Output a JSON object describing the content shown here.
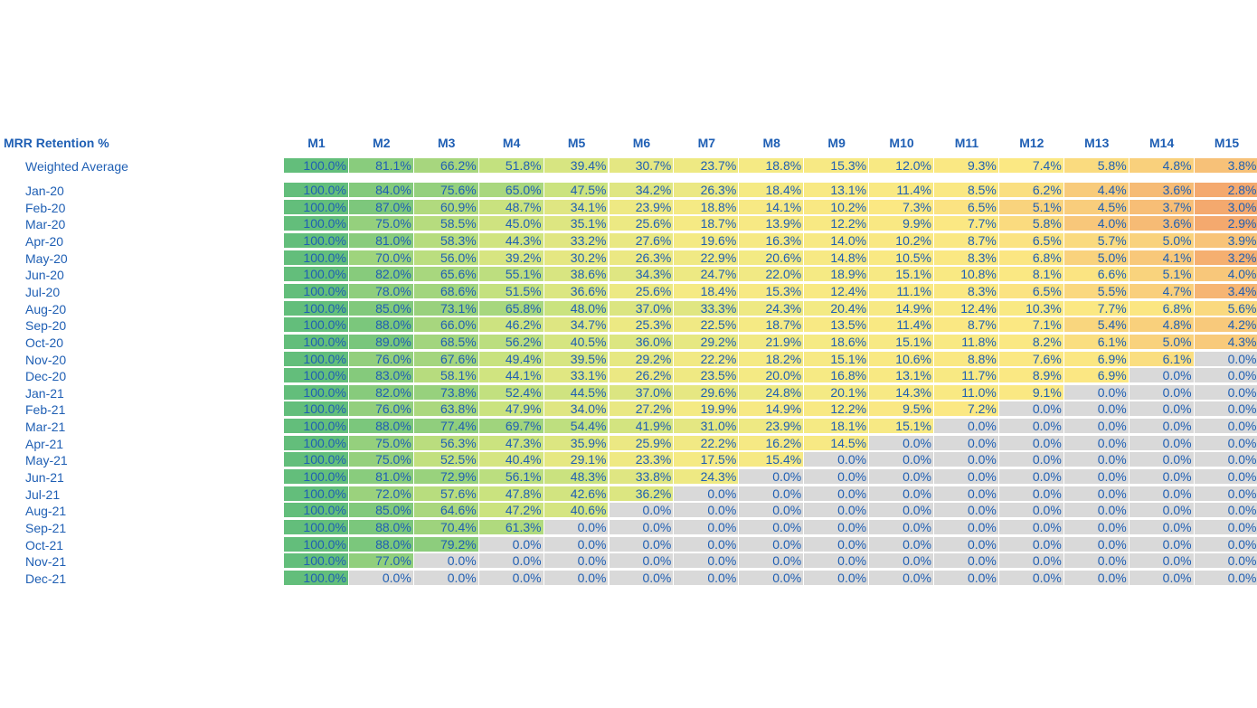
{
  "chart_data": {
    "type": "heatmap",
    "title": "MRR Retention %",
    "columns": [
      "M1",
      "M2",
      "M3",
      "M4",
      "M5",
      "M6",
      "M7",
      "M8",
      "M9",
      "M10",
      "M11",
      "M12",
      "M13",
      "M14",
      "M15"
    ],
    "weighted_average": {
      "label": "Weighted Average",
      "values": [
        "100.0%",
        "81.1%",
        "66.2%",
        "51.8%",
        "39.4%",
        "30.7%",
        "23.7%",
        "18.8%",
        "15.3%",
        "12.0%",
        "9.3%",
        "7.4%",
        "5.8%",
        "4.8%",
        "3.8%"
      ]
    },
    "rows": [
      {
        "label": "Jan-20",
        "values": [
          "100.0%",
          "84.0%",
          "75.6%",
          "65.0%",
          "47.5%",
          "34.2%",
          "26.3%",
          "18.4%",
          "13.1%",
          "11.4%",
          "8.5%",
          "6.2%",
          "4.4%",
          "3.6%",
          "2.8%"
        ]
      },
      {
        "label": "Feb-20",
        "values": [
          "100.0%",
          "87.0%",
          "60.9%",
          "48.7%",
          "34.1%",
          "23.9%",
          "18.8%",
          "14.1%",
          "10.2%",
          "7.3%",
          "6.5%",
          "5.1%",
          "4.5%",
          "3.7%",
          "3.0%"
        ]
      },
      {
        "label": "Mar-20",
        "values": [
          "100.0%",
          "75.0%",
          "58.5%",
          "45.0%",
          "35.1%",
          "25.6%",
          "18.7%",
          "13.9%",
          "12.2%",
          "9.9%",
          "7.7%",
          "5.8%",
          "4.0%",
          "3.6%",
          "2.9%"
        ]
      },
      {
        "label": "Apr-20",
        "values": [
          "100.0%",
          "81.0%",
          "58.3%",
          "44.3%",
          "33.2%",
          "27.6%",
          "19.6%",
          "16.3%",
          "14.0%",
          "10.2%",
          "8.7%",
          "6.5%",
          "5.7%",
          "5.0%",
          "3.9%"
        ]
      },
      {
        "label": "May-20",
        "values": [
          "100.0%",
          "70.0%",
          "56.0%",
          "39.2%",
          "30.2%",
          "26.3%",
          "22.9%",
          "20.6%",
          "14.8%",
          "10.5%",
          "8.3%",
          "6.8%",
          "5.0%",
          "4.1%",
          "3.2%"
        ]
      },
      {
        "label": "Jun-20",
        "values": [
          "100.0%",
          "82.0%",
          "65.6%",
          "55.1%",
          "38.6%",
          "34.3%",
          "24.7%",
          "22.0%",
          "18.9%",
          "15.1%",
          "10.8%",
          "8.1%",
          "6.6%",
          "5.1%",
          "4.0%"
        ]
      },
      {
        "label": "Jul-20",
        "values": [
          "100.0%",
          "78.0%",
          "68.6%",
          "51.5%",
          "36.6%",
          "25.6%",
          "18.4%",
          "15.3%",
          "12.4%",
          "11.1%",
          "8.3%",
          "6.5%",
          "5.5%",
          "4.7%",
          "3.4%"
        ]
      },
      {
        "label": "Aug-20",
        "values": [
          "100.0%",
          "85.0%",
          "73.1%",
          "65.8%",
          "48.0%",
          "37.0%",
          "33.3%",
          "24.3%",
          "20.4%",
          "14.9%",
          "12.4%",
          "10.3%",
          "7.7%",
          "6.8%",
          "5.6%"
        ]
      },
      {
        "label": "Sep-20",
        "values": [
          "100.0%",
          "88.0%",
          "66.0%",
          "46.2%",
          "34.7%",
          "25.3%",
          "22.5%",
          "18.7%",
          "13.5%",
          "11.4%",
          "8.7%",
          "7.1%",
          "5.4%",
          "4.8%",
          "4.2%"
        ]
      },
      {
        "label": "Oct-20",
        "values": [
          "100.0%",
          "89.0%",
          "68.5%",
          "56.2%",
          "40.5%",
          "36.0%",
          "29.2%",
          "21.9%",
          "18.6%",
          "15.1%",
          "11.8%",
          "8.2%",
          "6.1%",
          "5.0%",
          "4.3%"
        ]
      },
      {
        "label": "Nov-20",
        "values": [
          "100.0%",
          "76.0%",
          "67.6%",
          "49.4%",
          "39.5%",
          "29.2%",
          "22.2%",
          "18.2%",
          "15.1%",
          "10.6%",
          "8.8%",
          "7.6%",
          "6.9%",
          "6.1%",
          "0.0%"
        ]
      },
      {
        "label": "Dec-20",
        "values": [
          "100.0%",
          "83.0%",
          "58.1%",
          "44.1%",
          "33.1%",
          "26.2%",
          "23.5%",
          "20.0%",
          "16.8%",
          "13.1%",
          "11.7%",
          "8.9%",
          "6.9%",
          "0.0%",
          "0.0%"
        ]
      },
      {
        "label": "Jan-21",
        "values": [
          "100.0%",
          "82.0%",
          "73.8%",
          "52.4%",
          "44.5%",
          "37.0%",
          "29.6%",
          "24.8%",
          "20.1%",
          "14.3%",
          "11.0%",
          "9.1%",
          "0.0%",
          "0.0%",
          "0.0%"
        ]
      },
      {
        "label": "Feb-21",
        "values": [
          "100.0%",
          "76.0%",
          "63.8%",
          "47.9%",
          "34.0%",
          "27.2%",
          "19.9%",
          "14.9%",
          "12.2%",
          "9.5%",
          "7.2%",
          "0.0%",
          "0.0%",
          "0.0%",
          "0.0%"
        ]
      },
      {
        "label": "Mar-21",
        "values": [
          "100.0%",
          "88.0%",
          "77.4%",
          "69.7%",
          "54.4%",
          "41.9%",
          "31.0%",
          "23.9%",
          "18.1%",
          "15.1%",
          "0.0%",
          "0.0%",
          "0.0%",
          "0.0%",
          "0.0%"
        ]
      },
      {
        "label": "Apr-21",
        "values": [
          "100.0%",
          "75.0%",
          "56.3%",
          "47.3%",
          "35.9%",
          "25.9%",
          "22.2%",
          "16.2%",
          "14.5%",
          "0.0%",
          "0.0%",
          "0.0%",
          "0.0%",
          "0.0%",
          "0.0%"
        ]
      },
      {
        "label": "May-21",
        "values": [
          "100.0%",
          "75.0%",
          "52.5%",
          "40.4%",
          "29.1%",
          "23.3%",
          "17.5%",
          "15.4%",
          "0.0%",
          "0.0%",
          "0.0%",
          "0.0%",
          "0.0%",
          "0.0%",
          "0.0%"
        ]
      },
      {
        "label": "Jun-21",
        "values": [
          "100.0%",
          "81.0%",
          "72.9%",
          "56.1%",
          "48.3%",
          "33.8%",
          "24.3%",
          "0.0%",
          "0.0%",
          "0.0%",
          "0.0%",
          "0.0%",
          "0.0%",
          "0.0%",
          "0.0%"
        ]
      },
      {
        "label": "Jul-21",
        "values": [
          "100.0%",
          "72.0%",
          "57.6%",
          "47.8%",
          "42.6%",
          "36.2%",
          "0.0%",
          "0.0%",
          "0.0%",
          "0.0%",
          "0.0%",
          "0.0%",
          "0.0%",
          "0.0%",
          "0.0%"
        ]
      },
      {
        "label": "Aug-21",
        "values": [
          "100.0%",
          "85.0%",
          "64.6%",
          "47.2%",
          "40.6%",
          "0.0%",
          "0.0%",
          "0.0%",
          "0.0%",
          "0.0%",
          "0.0%",
          "0.0%",
          "0.0%",
          "0.0%",
          "0.0%"
        ]
      },
      {
        "label": "Sep-21",
        "values": [
          "100.0%",
          "88.0%",
          "70.4%",
          "61.3%",
          "0.0%",
          "0.0%",
          "0.0%",
          "0.0%",
          "0.0%",
          "0.0%",
          "0.0%",
          "0.0%",
          "0.0%",
          "0.0%",
          "0.0%"
        ]
      },
      {
        "label": "Oct-21",
        "values": [
          "100.0%",
          "88.0%",
          "79.2%",
          "0.0%",
          "0.0%",
          "0.0%",
          "0.0%",
          "0.0%",
          "0.0%",
          "0.0%",
          "0.0%",
          "0.0%",
          "0.0%",
          "0.0%",
          "0.0%"
        ]
      },
      {
        "label": "Nov-21",
        "values": [
          "100.0%",
          "77.0%",
          "0.0%",
          "0.0%",
          "0.0%",
          "0.0%",
          "0.0%",
          "0.0%",
          "0.0%",
          "0.0%",
          "0.0%",
          "0.0%",
          "0.0%",
          "0.0%",
          "0.0%"
        ]
      },
      {
        "label": "Dec-21",
        "values": [
          "100.0%",
          "0.0%",
          "0.0%",
          "0.0%",
          "0.0%",
          "0.0%",
          "0.0%",
          "0.0%",
          "0.0%",
          "0.0%",
          "0.0%",
          "0.0%",
          "0.0%",
          "0.0%",
          "0.0%"
        ]
      }
    ],
    "color_scale": {
      "empty": "#d9d9d9",
      "stops": [
        {
          "value": 100,
          "color": "#63be7b"
        },
        {
          "value": 50,
          "color": "#c7e27f"
        },
        {
          "value": 20,
          "color": "#f4ea84"
        },
        {
          "value": 7,
          "color": "#fbe883"
        },
        {
          "value": 4,
          "color": "#f8c77a"
        },
        {
          "value": 3,
          "color": "#f4a96e"
        }
      ],
      "min_value_color": "#f4a96e",
      "average_min_color": "#f5a66f"
    }
  }
}
